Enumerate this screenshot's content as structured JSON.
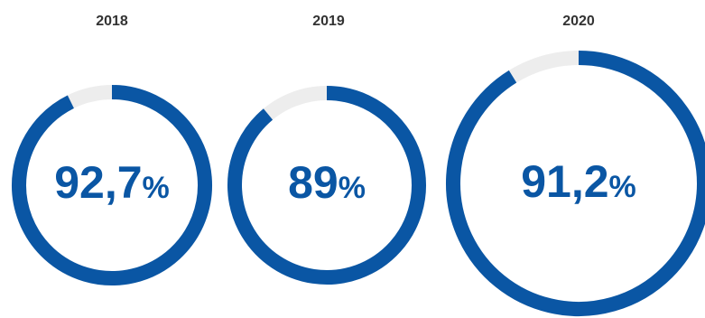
{
  "colors": {
    "progress": "#0A56A4",
    "track": "#EDEDED",
    "label": "#333333"
  },
  "chart_data": {
    "type": "pie",
    "variant": "donut-progress",
    "unit": "%",
    "max": 100,
    "items": [
      {
        "year": "2018",
        "value": 92.7,
        "value_label": "92,7"
      },
      {
        "year": "2019",
        "value": 89,
        "value_label": "89"
      },
      {
        "year": "2020",
        "value": 91.2,
        "value_label": "91,2"
      }
    ]
  }
}
